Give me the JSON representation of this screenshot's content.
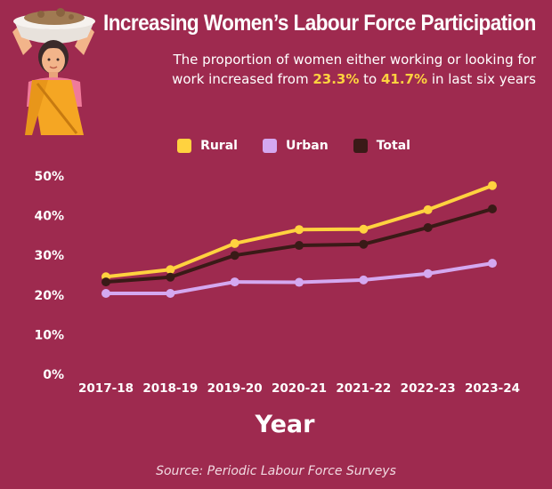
{
  "title": "Increasing Women’s Labour Force Participation",
  "subtitle": {
    "line1": "The proportion of women either working or looking for",
    "line2_pre": "work increased from ",
    "from": "23.3%",
    "mid": " to ",
    "to": "41.7%",
    "line2_post": " in last six years"
  },
  "source": "Source: Periodic Labour Force Surveys",
  "colors": {
    "background": "#9e2a4f",
    "rural": "#ffd23f",
    "urban": "#d4a8f0",
    "total": "#3a1a17",
    "highlight": "#ffd23f"
  },
  "chart_data": {
    "type": "line",
    "title": "Increasing Women’s Labour Force Participation",
    "xlabel": "Year",
    "ylabel": "",
    "categories": [
      "2017-18",
      "2018-19",
      "2019-20",
      "2020-21",
      "2021-22",
      "2022-23",
      "2023-24"
    ],
    "ylim": [
      0,
      50
    ],
    "yticks": [
      "0%",
      "10%",
      "20%",
      "30%",
      "40%",
      "50%"
    ],
    "grid": false,
    "legend_position": "top-center",
    "series": [
      {
        "name": "Rural",
        "color": "#ffd23f",
        "values": [
          24.6,
          26.4,
          33.0,
          36.5,
          36.6,
          41.5,
          47.6
        ]
      },
      {
        "name": "Urban",
        "color": "#d4a8f0",
        "values": [
          20.4,
          20.4,
          23.3,
          23.2,
          23.8,
          25.4,
          28.0
        ]
      },
      {
        "name": "Total",
        "color": "#3a1a17",
        "values": [
          23.3,
          24.5,
          30.0,
          32.5,
          32.8,
          37.0,
          41.7
        ]
      }
    ]
  }
}
